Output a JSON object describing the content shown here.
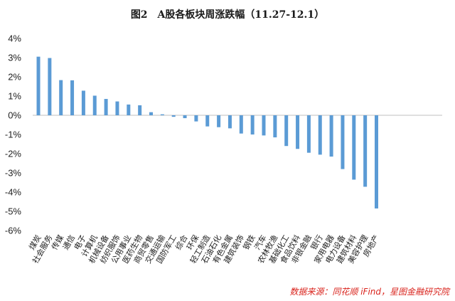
{
  "chart_data": {
    "type": "bar",
    "title": "图2　A股各板块周涨跌幅（11.27-12.1）",
    "source": "数据来源：同花顺 iFind，星图金融研究院",
    "ylim": [
      -6,
      4
    ],
    "yticks": [
      "4%",
      "3%",
      "2%",
      "1%",
      "0%",
      "-1%",
      "-2%",
      "-3%",
      "-4%",
      "-5%",
      "-6%"
    ],
    "bar_color": "#5b9bd5",
    "categories": [
      "煤炭",
      "社会服务",
      "传媒",
      "通信",
      "电子",
      "计算机",
      "机械设备",
      "纺织服饰",
      "公用事业",
      "医药生物",
      "商贸零售",
      "交通运输",
      "国防军工",
      "综合",
      "环保",
      "轻工制造",
      "石油石化",
      "有色金属",
      "建筑装饰",
      "钢铁",
      "汽车",
      "农林牧渔",
      "基础化工",
      "食品饮料",
      "非银金融",
      "银行",
      "家用电器",
      "电力设备",
      "建筑材料",
      "美容护理",
      "房地产"
    ],
    "values": [
      3.05,
      2.98,
      1.83,
      1.82,
      1.28,
      1.02,
      0.85,
      0.72,
      0.56,
      0.52,
      0.16,
      0.05,
      -0.08,
      -0.15,
      -0.32,
      -0.58,
      -0.62,
      -0.68,
      -0.95,
      -1.0,
      -1.05,
      -1.15,
      -1.6,
      -1.75,
      -1.95,
      -2.05,
      -2.15,
      -2.8,
      -3.35,
      -3.72,
      -4.85
    ]
  }
}
